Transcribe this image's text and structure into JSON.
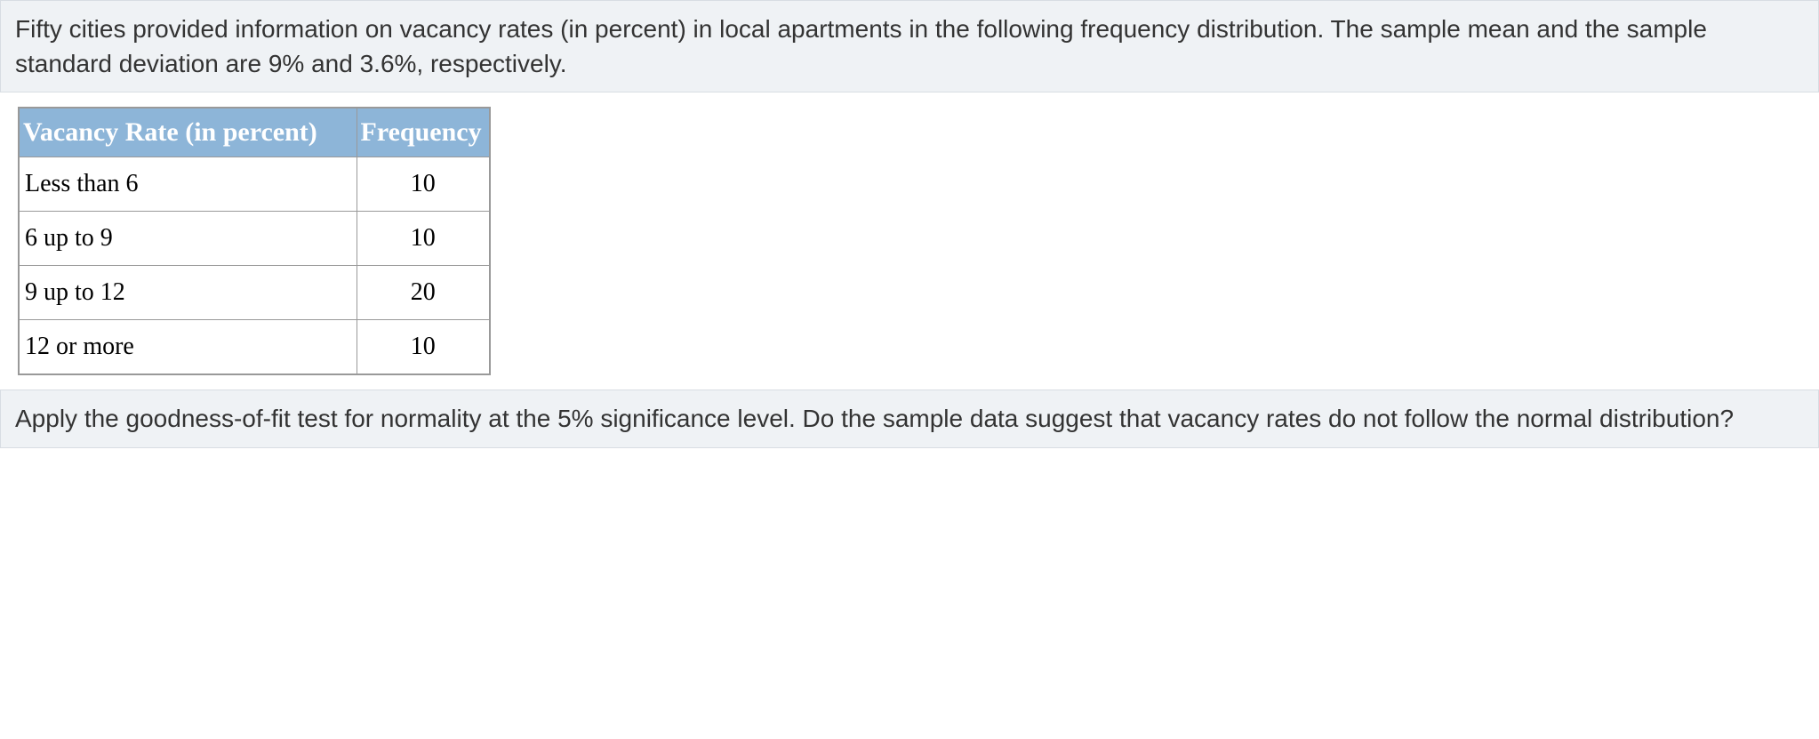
{
  "intro_text": "Fifty cities provided information on vacancy rates (in percent) in local apartments in the following frequency distribution. The sample mean and the sample standard deviation are 9% and 3.6%, respectively.",
  "table": {
    "headers": {
      "rate": "Vacancy Rate (in percent)",
      "freq": "Frequency"
    },
    "rows": [
      {
        "rate": "Less than 6",
        "freq": "10"
      },
      {
        "rate": "6 up to 9",
        "freq": "10"
      },
      {
        "rate": "9 up to 12",
        "freq": "20"
      },
      {
        "rate": "12 or more",
        "freq": "10"
      }
    ],
    "header_bg": "#8db5d8",
    "header_color": "#ffffff",
    "border_color": "#999999",
    "cell_font": "Times New Roman",
    "cell_fontsize": 28,
    "header_fontsize": 30
  },
  "question_text": "Apply the goodness-of-fit test for normality at the 5% significance level. Do the sample data suggest that vacancy rates do not follow the normal distribution?",
  "styling": {
    "text_block_bg": "#eff2f5",
    "text_block_border": "#d8dde3",
    "body_font": "Arial",
    "body_fontsize": 28,
    "text_color": "#333333"
  }
}
